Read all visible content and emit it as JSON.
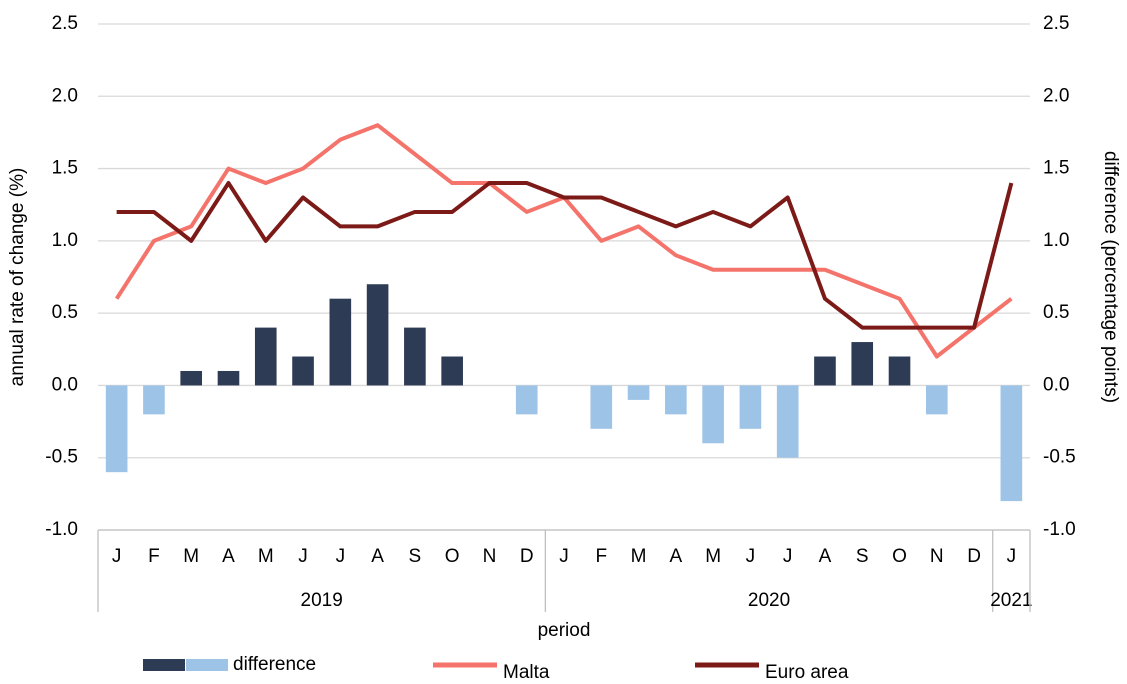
{
  "chart_data": {
    "type": "bar-line",
    "x_label": "period",
    "y_label": "annual rate of change (%)",
    "y2_label": "difference (percentage points)",
    "categories": [
      "J",
      "F",
      "M",
      "A",
      "M",
      "J",
      "J",
      "A",
      "S",
      "O",
      "N",
      "D",
      "J",
      "F",
      "M",
      "A",
      "M",
      "J",
      "J",
      "A",
      "S",
      "O",
      "N",
      "D",
      "J"
    ],
    "groups": [
      {
        "label": "2019",
        "span": 12
      },
      {
        "label": "2020",
        "span": 12
      },
      {
        "label": "2021",
        "span": 1
      }
    ],
    "series": [
      {
        "name": "difference",
        "type": "bar",
        "axis": "y2",
        "color": "#2e3b55",
        "negative_color": "#9dc3e6",
        "values": [
          -0.6,
          -0.2,
          0.1,
          0.1,
          0.4,
          0.2,
          0.6,
          0.7,
          0.4,
          0.2,
          0,
          -0.2,
          0,
          -0.3,
          -0.1,
          -0.2,
          -0.4,
          -0.3,
          -0.5,
          0.2,
          0.3,
          0.2,
          -0.2,
          0,
          -0.8
        ]
      },
      {
        "name": "Malta",
        "type": "line",
        "color": "#f4736b",
        "values": [
          0.6,
          1.0,
          1.1,
          1.5,
          1.4,
          1.5,
          1.7,
          1.8,
          1.6,
          1.4,
          1.4,
          1.2,
          1.3,
          1.0,
          1.1,
          0.9,
          0.8,
          0.8,
          0.8,
          0.8,
          0.7,
          0.6,
          0.2,
          0.4,
          0.6
        ]
      },
      {
        "name": "Euro area",
        "type": "line",
        "color": "#7b1a17",
        "values": [
          1.2,
          1.2,
          1.0,
          1.4,
          1.0,
          1.3,
          1.1,
          1.1,
          1.2,
          1.2,
          1.4,
          1.4,
          1.3,
          1.3,
          1.2,
          1.1,
          1.2,
          1.1,
          1.3,
          0.6,
          0.4,
          0.4,
          0.4,
          0.4,
          1.4
        ]
      }
    ],
    "ylim": [
      -1.0,
      2.5
    ],
    "yticks": [
      {
        "value": -1,
        "label": "-1.0"
      },
      -0.5,
      {
        "value": 0,
        "label": "0.0"
      },
      0.5,
      {
        "value": 1,
        "label": "1.0"
      },
      1.5,
      {
        "value": 2,
        "label": "2.0"
      },
      2.5
    ],
    "y2lim": [
      -1.0,
      2.5
    ],
    "y2ticks": [
      {
        "value": -1,
        "label": "-1.0"
      },
      -0.5,
      {
        "value": 0,
        "label": "0.0"
      },
      0.5,
      {
        "value": 1,
        "label": "1.0"
      },
      1.5,
      {
        "value": 2,
        "label": "2.0"
      },
      2.5
    ],
    "grid": true
  }
}
